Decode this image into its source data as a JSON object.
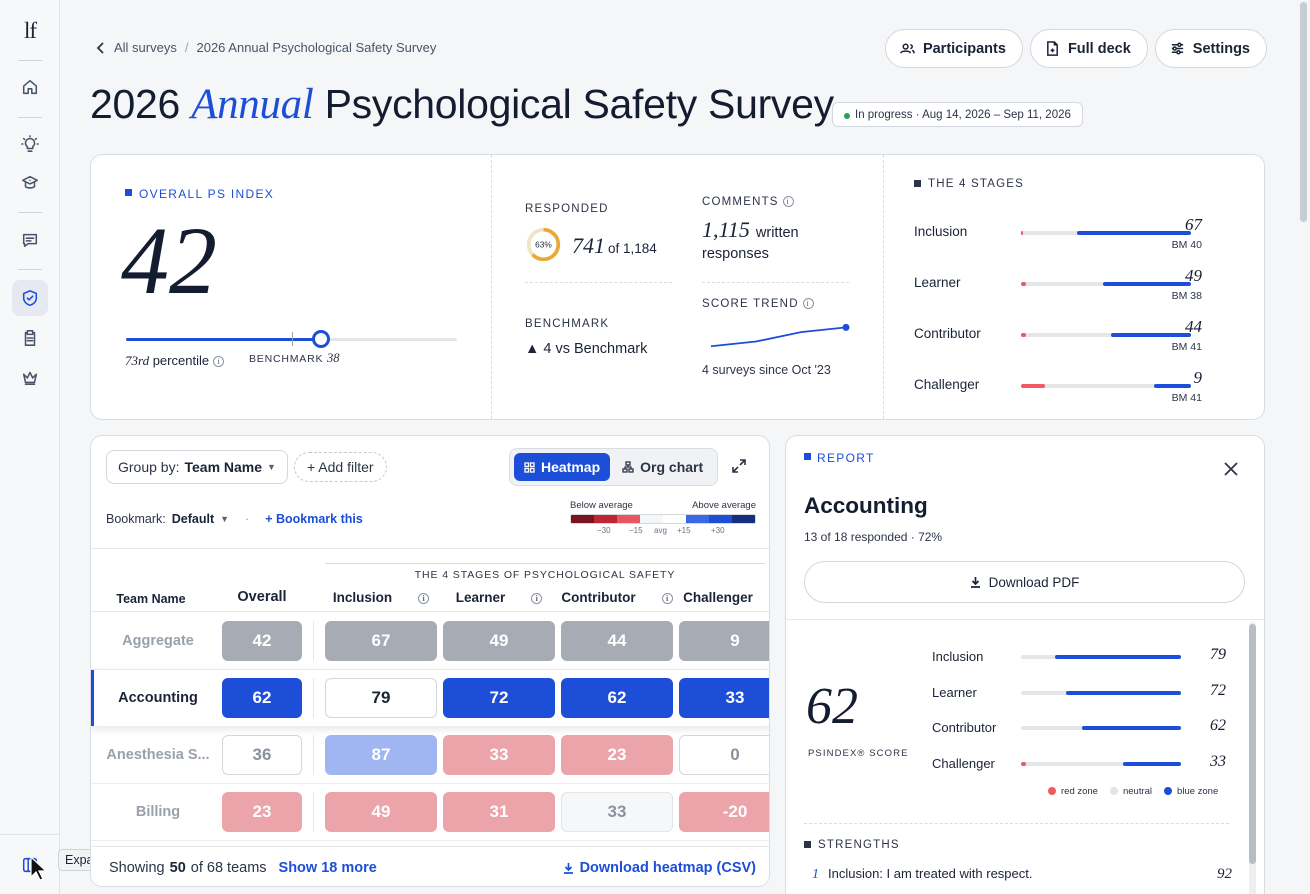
{
  "sidebar": {
    "logo": "lf",
    "icons": [
      "home-icon",
      "lightbulb-icon",
      "graduation-icon",
      "message-icon",
      "shield-check-icon",
      "clipboard-icon",
      "crown-icon"
    ],
    "tooltip": "Expand sidebar"
  },
  "breadcrumb": {
    "parent": "All surveys",
    "separator": "/",
    "current": "2026 Annual Psychological Safety Survey"
  },
  "header": {
    "buttons": {
      "participants": "Participants",
      "full_deck": "Full deck",
      "settings": "Settings"
    },
    "title_pre": "2026",
    "title_em": "Annual",
    "title_post": "Psychological Safety Survey",
    "status": "In progress · Aug 14, 2026 – Sep 11, 2026"
  },
  "overview": {
    "ps_index_label": "OVERALL PS INDEX",
    "ps_index": "42",
    "percentile_num": "73rd",
    "percentile_text": "percentile",
    "benchmark_label": "BENCHMARK",
    "benchmark_value": "38",
    "ps_index_pct": 0.59,
    "benchmark_pct": 0.5,
    "responded_label": "RESPONDED",
    "responded_pct": "63%",
    "responded_pct_value": 0.63,
    "responded_count": "741",
    "responded_total": "of 1,184",
    "comments_label": "COMMENTS",
    "comments_count": "1,115",
    "comments_text": "written responses",
    "benchmark_label2": "BENCHMARK",
    "benchmark_delta": "▲ 4 vs Benchmark",
    "trend_label": "SCORE TREND",
    "trend_values": [
      34,
      36,
      40,
      42
    ],
    "trend_sub": "4 surveys since Oct '23",
    "stages_label": "THE 4 STAGES",
    "stages": [
      {
        "name": "Inclusion",
        "score": "67",
        "bm": "BM 40",
        "neg": 0.01,
        "pos": 0.67
      },
      {
        "name": "Learner",
        "score": "49",
        "bm": "BM 38",
        "neg": 0.03,
        "pos": 0.52
      },
      {
        "name": "Contributor",
        "score": "44",
        "bm": "BM 41",
        "neg": 0.03,
        "pos": 0.47
      },
      {
        "name": "Challenger",
        "score": "9",
        "bm": "BM 41",
        "neg": 0.14,
        "pos": 0.22
      }
    ]
  },
  "heatmap": {
    "group_by_label": "Group by:",
    "group_by_value": "Team Name",
    "add_filter": "+ Add filter",
    "view_heatmap": "Heatmap",
    "view_org": "Org chart",
    "bookmark_label": "Bookmark:",
    "bookmark_value": "Default",
    "bookmark_sep": "·",
    "bookmark_action": "+ Bookmark this",
    "legend_below": "Below average",
    "legend_above": "Above average",
    "legend_colors": [
      "#7a1420",
      "#c02533",
      "#e8565f",
      "#f5f6f8",
      "#ffffff",
      "#3b68e6",
      "#1d4ed8",
      "#14307d"
    ],
    "legend_ticks": [
      "−30",
      "−15",
      "avg",
      "+15",
      "+30"
    ],
    "stages_header": "THE 4 STAGES OF PSYCHOLOGICAL SAFETY",
    "columns": [
      "Team Name",
      "Overall",
      "Inclusion",
      "Learner",
      "Contributor",
      "Challenger"
    ],
    "rows": [
      {
        "team": "Aggregate",
        "values": [
          "42",
          "67",
          "49",
          "44",
          "9"
        ],
        "styles": [
          "grey",
          "grey",
          "grey",
          "grey",
          "grey"
        ]
      },
      {
        "team": "Accounting",
        "values": [
          "62",
          "79",
          "72",
          "62",
          "33"
        ],
        "styles": [
          "blue",
          "white",
          "blue",
          "blue",
          "blue"
        ]
      },
      {
        "team": "Anesthesia S...",
        "values": [
          "36",
          "87",
          "33",
          "23",
          "0"
        ],
        "styles": [
          "white2",
          "lightblue",
          "pink",
          "pink",
          "white2"
        ]
      },
      {
        "team": "Billing",
        "values": [
          "23",
          "49",
          "31",
          "33",
          "-20"
        ],
        "styles": [
          "pink",
          "pink",
          "pink",
          "pale",
          "pink"
        ]
      }
    ],
    "footer_showing": "Showing",
    "footer_count": "50",
    "footer_of": "of 68 teams",
    "footer_more": "Show 18 more",
    "footer_download": "Download heatmap (CSV)"
  },
  "report": {
    "label": "REPORT",
    "title": "Accounting",
    "subtitle": "13 of 18 responded · 72%",
    "download": "Download PDF",
    "score": "62",
    "score_label": "PSINDEX® SCORE",
    "stages": [
      {
        "name": "Inclusion",
        "score": "79",
        "neg": 0.0,
        "pos": 0.79
      },
      {
        "name": "Learner",
        "score": "72",
        "neg": 0.0,
        "pos": 0.72
      },
      {
        "name": "Contributor",
        "score": "62",
        "neg": 0.0,
        "pos": 0.62
      },
      {
        "name": "Challenger",
        "score": "33",
        "neg": 0.03,
        "pos": 0.36
      }
    ],
    "zones": {
      "red": "red zone",
      "neutral": "neutral",
      "blue": "blue zone"
    },
    "strengths_label": "STRENGTHS",
    "strengths": [
      {
        "n": "1",
        "text": "Inclusion: I am treated with respect.",
        "value": "92"
      }
    ]
  }
}
